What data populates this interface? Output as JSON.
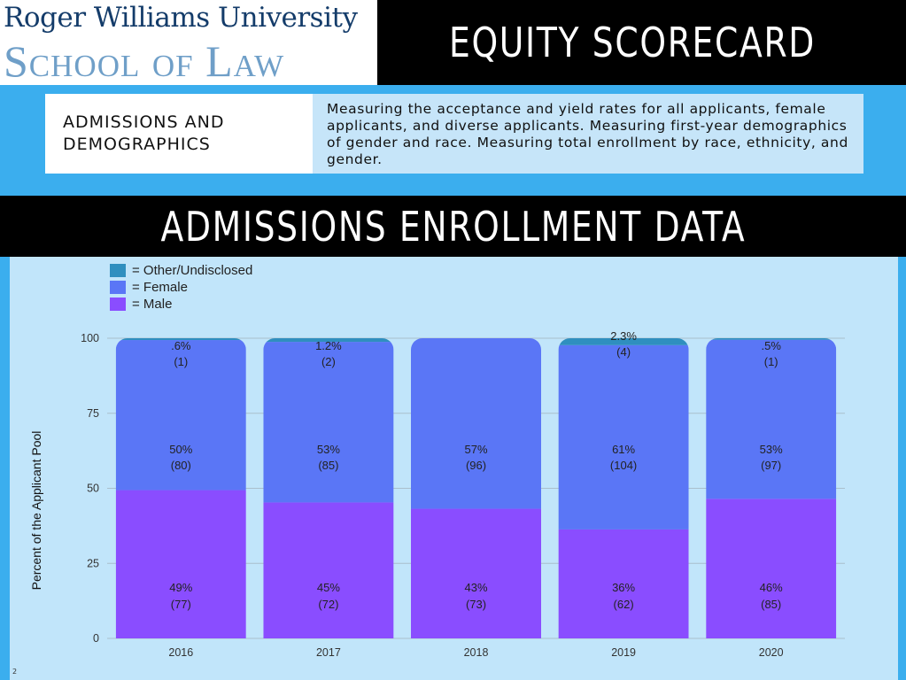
{
  "header": {
    "logo_line1": "Roger Williams University",
    "logo_line2": "School of Law",
    "title": "EQUITY SCORECARD"
  },
  "info": {
    "label": "ADMISSIONS AND DEMOGRAPHICS",
    "description": "Measuring the acceptance and yield rates for all applicants, female applicants, and diverse applicants. Measuring first-year demographics of gender and race. Measuring total enrollment by race, ethnicity, and gender."
  },
  "section_title": "ADMISSIONS ENROLLMENT DATA",
  "slide_number": "2",
  "colors": {
    "page_bg": "#3baeee",
    "chart_bg": "#c1e5fa",
    "male": "#8a4dff",
    "female": "#5a76f6",
    "other": "#2f8fbf"
  },
  "chart_data": {
    "type": "bar",
    "stacked": true,
    "categories": [
      "2016",
      "2017",
      "2018",
      "2019",
      "2020"
    ],
    "ylabel": "Percent of the Applicant Pool",
    "xlabel": "",
    "ylim": [
      0,
      100
    ],
    "yticks": [
      0,
      25,
      50,
      75,
      100
    ],
    "legend_position": "top-left",
    "series": [
      {
        "name": "= Male",
        "color": "#8a4dff",
        "values": [
          49.4,
          45.3,
          43.2,
          36.3,
          46.5
        ],
        "labels": [
          "49%",
          "45%",
          "43%",
          "36%",
          "46%"
        ],
        "counts": [
          "(77)",
          "(72)",
          "(73)",
          "(62)",
          "(85)"
        ]
      },
      {
        "name": "= Female",
        "color": "#5a76f6",
        "values": [
          50.0,
          53.5,
          56.8,
          61.4,
          53.0
        ],
        "labels": [
          "50%",
          "53%",
          "57%",
          "61%",
          "53%"
        ],
        "counts": [
          "(80)",
          "(85)",
          "(96)",
          "(104)",
          "(97)"
        ]
      },
      {
        "name": "= Other/Undisclosed",
        "color": "#2f8fbf",
        "values": [
          0.6,
          1.2,
          0,
          2.3,
          0.5
        ],
        "labels": [
          ".6%",
          "1.2%",
          "",
          "2.3%",
          ".5%"
        ],
        "counts": [
          "(1)",
          "(2)",
          "",
          "(4)",
          "(1)"
        ]
      }
    ]
  }
}
